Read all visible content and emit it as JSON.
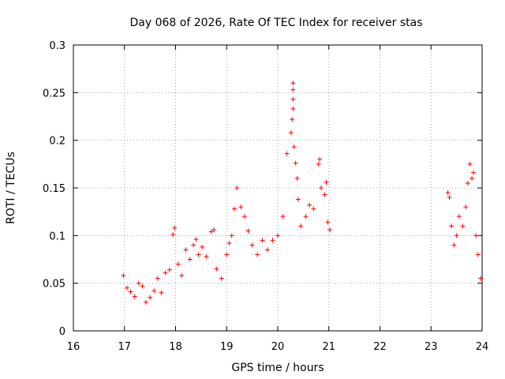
{
  "chart_data": {
    "type": "scatter",
    "title": "Day 068 of 2026, Rate Of TEC Index for receiver stas",
    "xlabel": "GPS time / hours",
    "ylabel": "ROTI / TECUs",
    "xlim": [
      16,
      24
    ],
    "ylim": [
      0,
      0.3
    ],
    "x_ticks": [
      "16",
      "17",
      "18",
      "19",
      "20",
      "21",
      "22",
      "23",
      "24"
    ],
    "y_ticks": [
      "0",
      "0.05",
      "0.1",
      "0.15",
      "0.2",
      "0.25",
      "0.3"
    ],
    "grid": true,
    "marker": "+",
    "series_color": "#ff0000",
    "series": [
      {
        "name": "stas",
        "points": [
          [
            16.98,
            0.058
          ],
          [
            17.05,
            0.045
          ],
          [
            17.12,
            0.041
          ],
          [
            17.2,
            0.036
          ],
          [
            17.28,
            0.05
          ],
          [
            17.35,
            0.047
          ],
          [
            17.42,
            0.03
          ],
          [
            17.5,
            0.035
          ],
          [
            17.58,
            0.042
          ],
          [
            17.65,
            0.055
          ],
          [
            17.72,
            0.04
          ],
          [
            17.8,
            0.061
          ],
          [
            17.88,
            0.064
          ],
          [
            17.95,
            0.101
          ],
          [
            17.98,
            0.108
          ],
          [
            18.05,
            0.07
          ],
          [
            18.12,
            0.058
          ],
          [
            18.2,
            0.085
          ],
          [
            18.28,
            0.075
          ],
          [
            18.35,
            0.09
          ],
          [
            18.4,
            0.096
          ],
          [
            18.45,
            0.08
          ],
          [
            18.52,
            0.088
          ],
          [
            18.6,
            0.078
          ],
          [
            18.7,
            0.104
          ],
          [
            18.75,
            0.106
          ],
          [
            18.8,
            0.065
          ],
          [
            18.9,
            0.055
          ],
          [
            19.0,
            0.08
          ],
          [
            19.05,
            0.092
          ],
          [
            19.1,
            0.1
          ],
          [
            19.15,
            0.128
          ],
          [
            19.2,
            0.15
          ],
          [
            19.28,
            0.13
          ],
          [
            19.35,
            0.12
          ],
          [
            19.42,
            0.105
          ],
          [
            19.5,
            0.09
          ],
          [
            19.6,
            0.08
          ],
          [
            19.7,
            0.095
          ],
          [
            19.8,
            0.085
          ],
          [
            19.9,
            0.095
          ],
          [
            20.0,
            0.1
          ],
          [
            20.1,
            0.12
          ],
          [
            20.18,
            0.186
          ],
          [
            20.26,
            0.208
          ],
          [
            20.28,
            0.222
          ],
          [
            20.3,
            0.233
          ],
          [
            20.3,
            0.243
          ],
          [
            20.3,
            0.253
          ],
          [
            20.3,
            0.26
          ],
          [
            20.32,
            0.193
          ],
          [
            20.35,
            0.176
          ],
          [
            20.38,
            0.16
          ],
          [
            20.4,
            0.138
          ],
          [
            20.45,
            0.11
          ],
          [
            20.55,
            0.12
          ],
          [
            20.62,
            0.132
          ],
          [
            20.7,
            0.128
          ],
          [
            20.8,
            0.175
          ],
          [
            20.82,
            0.18
          ],
          [
            20.85,
            0.15
          ],
          [
            20.92,
            0.143
          ],
          [
            20.95,
            0.156
          ],
          [
            20.98,
            0.114
          ],
          [
            21.02,
            0.106
          ],
          [
            23.33,
            0.145
          ],
          [
            23.36,
            0.14
          ],
          [
            23.4,
            0.11
          ],
          [
            23.45,
            0.09
          ],
          [
            23.5,
            0.1
          ],
          [
            23.55,
            0.12
          ],
          [
            23.62,
            0.11
          ],
          [
            23.68,
            0.13
          ],
          [
            23.72,
            0.155
          ],
          [
            23.76,
            0.175
          ],
          [
            23.8,
            0.16
          ],
          [
            23.83,
            0.166
          ],
          [
            23.88,
            0.1
          ],
          [
            23.92,
            0.08
          ],
          [
            23.97,
            0.055
          ]
        ]
      }
    ]
  }
}
